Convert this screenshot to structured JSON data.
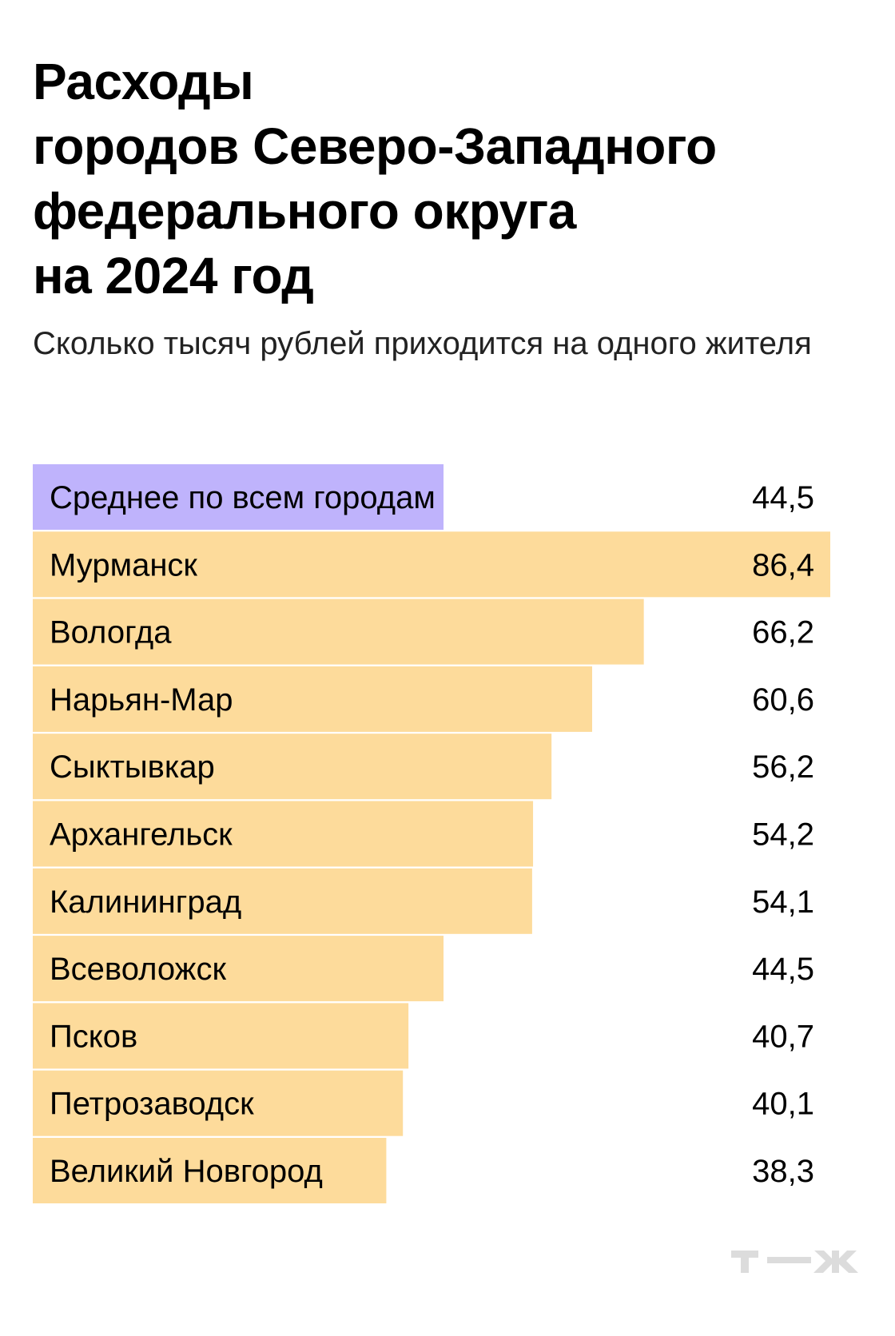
{
  "chart_data": {
    "type": "bar",
    "orientation": "horizontal",
    "title": "Расходы городов Северо-Западного федерального округа на 2024 год",
    "title_lines": [
      "Расходы",
      "городов Северо-Западного",
      "федерального округа",
      "на 2024 год"
    ],
    "subtitle": "Сколько тысяч рублей приходится на одного жителя",
    "categories": [
      "Среднее по всем городам",
      "Мурманск",
      "Вологда",
      "Нарьян-Мар",
      "Сыктывкар",
      "Архангельск",
      "Калининград",
      "Всеволожск",
      "Псков",
      "Петрозаводск",
      "Великий Новгород"
    ],
    "values": [
      44.5,
      86.4,
      66.2,
      60.6,
      56.2,
      54.2,
      54.1,
      44.5,
      40.7,
      40.1,
      38.3
    ],
    "value_labels": [
      "44,5",
      "86,4",
      "66,2",
      "60,6",
      "56,2",
      "54,2",
      "54,1",
      "44,5",
      "40,7",
      "40,1",
      "38,3"
    ],
    "xlim": [
      0,
      86.4
    ],
    "grid": false,
    "colors": {
      "average": "#bfb3fc",
      "city": "#fddb9b"
    }
  },
  "logo": "Т—Ж"
}
